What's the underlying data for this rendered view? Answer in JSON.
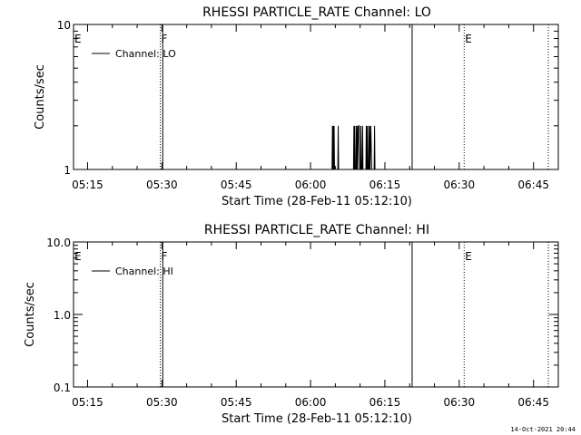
{
  "chart_data": [
    {
      "type": "line",
      "title": "RHESSI PARTICLE_RATE Channel: LO",
      "xlabel": "Start Time (28-Feb-11 05:12:10)",
      "ylabel": "Counts/sec",
      "log_y": true,
      "ylim": [
        1,
        10
      ],
      "y_ticks": [
        {
          "value": 1,
          "label": "1"
        },
        {
          "value": 10,
          "label": "10"
        }
      ],
      "xlim": [
        "05:12:10",
        "06:50:00"
      ],
      "x_ticks": [
        "05:15",
        "05:30",
        "05:45",
        "06:00",
        "06:15",
        "06:30",
        "06:45"
      ],
      "legend": {
        "entries": [
          "Channel: LO"
        ],
        "placement": "top-left"
      },
      "grid": false,
      "markers": [
        {
          "label": "E",
          "time": "05:12:10",
          "style": "none"
        },
        {
          "label": "F",
          "time": "05:29:40",
          "style": "dotted"
        },
        {
          "label": "",
          "time": "05:30:10",
          "style": "solid"
        },
        {
          "label": "",
          "time": "06:20:30",
          "style": "solid"
        },
        {
          "label": "E",
          "time": "06:31:00",
          "style": "dotted"
        },
        {
          "label": "",
          "time": "06:48:00",
          "style": "dotted"
        }
      ],
      "series": [
        {
          "name": "Channel: LO",
          "points": [
            [
              "06:04:20",
              1
            ],
            [
              "06:04:25",
              2
            ],
            [
              "06:04:30",
              1
            ],
            [
              "06:04:35",
              2
            ],
            [
              "06:04:40",
              1
            ],
            [
              "06:04:45",
              2
            ],
            [
              "06:04:50",
              1
            ],
            [
              "06:05:30",
              1
            ],
            [
              "06:05:35",
              2
            ],
            [
              "06:05:40",
              1
            ],
            [
              "06:08:40",
              1
            ],
            [
              "06:08:45",
              2
            ],
            [
              "06:08:50",
              1
            ],
            [
              "06:08:55",
              2
            ],
            [
              "06:09:00",
              1
            ],
            [
              "06:09:10",
              1
            ],
            [
              "06:09:15",
              2
            ],
            [
              "06:09:20",
              1
            ],
            [
              "06:09:25",
              2
            ],
            [
              "06:09:30",
              1
            ],
            [
              "06:09:40",
              2
            ],
            [
              "06:09:50",
              2
            ],
            [
              "06:09:55",
              1
            ],
            [
              "06:10:05",
              1
            ],
            [
              "06:10:10",
              2
            ],
            [
              "06:10:15",
              1
            ],
            [
              "06:10:25",
              1
            ],
            [
              "06:10:30",
              2
            ],
            [
              "06:10:35",
              1
            ],
            [
              "06:11:10",
              1
            ],
            [
              "06:11:15",
              2
            ],
            [
              "06:11:20",
              1
            ],
            [
              "06:11:25",
              2
            ],
            [
              "06:11:30",
              1
            ],
            [
              "06:11:40",
              1
            ],
            [
              "06:11:45",
              2
            ],
            [
              "06:11:50",
              1
            ],
            [
              "06:11:55",
              2
            ],
            [
              "06:12:00",
              1
            ],
            [
              "06:12:10",
              2
            ],
            [
              "06:12:20",
              1
            ],
            [
              "06:12:50",
              1
            ],
            [
              "06:12:55",
              2
            ],
            [
              "06:13:00",
              1
            ]
          ]
        }
      ]
    },
    {
      "type": "line",
      "title": "RHESSI PARTICLE_RATE Channel: HI",
      "xlabel": "Start Time (28-Feb-11 05:12:10)",
      "ylabel": "Counts/sec",
      "log_y": true,
      "ylim": [
        0.1,
        10
      ],
      "y_ticks": [
        {
          "value": 0.1,
          "label": "0.1"
        },
        {
          "value": 1,
          "label": "1.0"
        },
        {
          "value": 10,
          "label": "10.0"
        }
      ],
      "xlim": [
        "05:12:10",
        "06:50:00"
      ],
      "x_ticks": [
        "05:15",
        "05:30",
        "05:45",
        "06:00",
        "06:15",
        "06:30",
        "06:45"
      ],
      "legend": {
        "entries": [
          "Channel: HI"
        ],
        "placement": "top-left"
      },
      "grid": false,
      "markers": [
        {
          "label": "E",
          "time": "05:12:10",
          "style": "none"
        },
        {
          "label": "F",
          "time": "05:29:40",
          "style": "dotted"
        },
        {
          "label": "",
          "time": "05:30:10",
          "style": "solid"
        },
        {
          "label": "",
          "time": "06:20:30",
          "style": "solid"
        },
        {
          "label": "E",
          "time": "06:31:00",
          "style": "dotted"
        },
        {
          "label": "",
          "time": "06:48:00",
          "style": "dotted"
        }
      ],
      "series": [
        {
          "name": "Channel: HI",
          "points": []
        }
      ]
    }
  ],
  "footer": {
    "timestamp": "14-Oct-2021 20:44"
  }
}
